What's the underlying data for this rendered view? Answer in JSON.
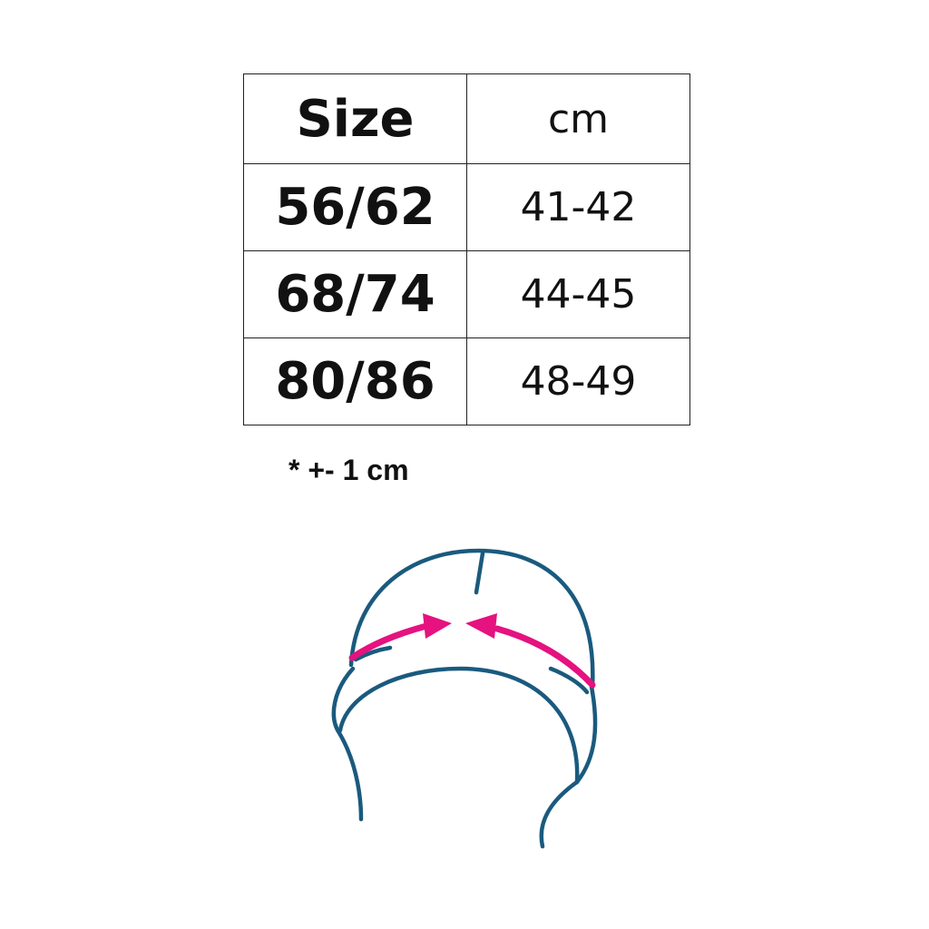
{
  "table": {
    "headers": [
      "Size",
      "cm"
    ],
    "rows": [
      {
        "size": "56/62",
        "cm": "41-42"
      },
      {
        "size": "68/74",
        "cm": "44-45"
      },
      {
        "size": "80/86",
        "cm": "48-49"
      }
    ]
  },
  "note": "* +- 1 cm",
  "illustration": {
    "icon": "hat-measurement-icon",
    "line_color": "#1a5a7e",
    "arrow_color": "#e5127f"
  }
}
